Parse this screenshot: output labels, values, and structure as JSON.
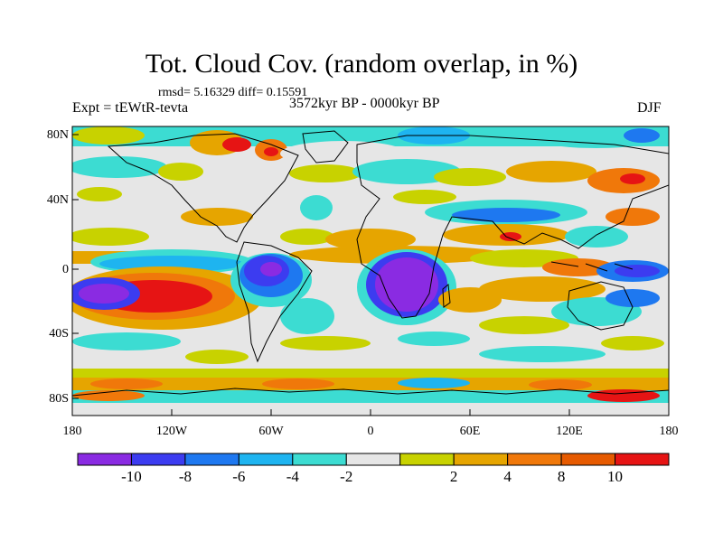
{
  "title": "Tot. Cloud Cov. (random overlap, in %)",
  "stats": "rmsd= 5.16329 diff= 0.15591",
  "experiment": "Expt = tEWtR-tevta",
  "period": "3572kyr BP - 0000kyr BP",
  "season": "DJF",
  "lat_labels": [
    "80N",
    "40N",
    "0",
    "40S",
    "80S"
  ],
  "lon_labels": [
    "180",
    "120W",
    "60W",
    "0",
    "60E",
    "120E",
    "180"
  ],
  "colorbar": {
    "colors": [
      "#8a2be2",
      "#3c3cf0",
      "#1e78f0",
      "#1eb4f0",
      "#3cdcd2",
      "#e6e6e6",
      "#c8d200",
      "#e6a500",
      "#f0780a",
      "#e65a00",
      "#e61414"
    ],
    "labels": [
      "-10",
      "-8",
      "-6",
      "-4",
      "-2",
      "2",
      "4",
      "8",
      "10"
    ]
  },
  "map_colors": {
    "ocean_bg": "#e6e6e6",
    "coast": "#000000"
  }
}
